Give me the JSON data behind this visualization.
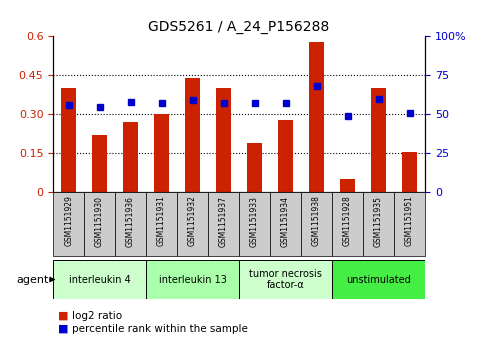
{
  "title": "GDS5261 / A_24_P156288",
  "samples": [
    "GSM1151929",
    "GSM1151930",
    "GSM1151936",
    "GSM1151931",
    "GSM1151932",
    "GSM1151937",
    "GSM1151933",
    "GSM1151934",
    "GSM1151938",
    "GSM1151928",
    "GSM1151935",
    "GSM1151951"
  ],
  "log2_ratio": [
    0.4,
    0.22,
    0.27,
    0.3,
    0.44,
    0.4,
    0.19,
    0.28,
    0.58,
    0.05,
    0.4,
    0.155
  ],
  "percentile_rank": [
    56,
    55,
    58,
    57,
    59,
    57,
    57,
    57,
    68,
    49,
    60,
    51
  ],
  "bar_color": "#cc2200",
  "dot_color": "#0000cc",
  "ylim_left": [
    0,
    0.6
  ],
  "ylim_right": [
    0,
    100
  ],
  "yticks_left": [
    0,
    0.15,
    0.3,
    0.45,
    0.6
  ],
  "yticks_right": [
    0,
    25,
    50,
    75,
    100
  ],
  "ytick_labels_left": [
    "0",
    "0.15",
    "0.30",
    "0.45",
    "0.6"
  ],
  "ytick_labels_right": [
    "0",
    "25",
    "50",
    "75",
    "100%"
  ],
  "agents": [
    {
      "label": "interleukin 4",
      "cols": [
        0,
        1,
        2
      ],
      "color": "#ccffcc"
    },
    {
      "label": "interleukin 13",
      "cols": [
        3,
        4,
        5
      ],
      "color": "#aaffaa"
    },
    {
      "label": "tumor necrosis\nfactor-α",
      "cols": [
        6,
        7,
        8
      ],
      "color": "#ccffcc"
    },
    {
      "label": "unstimulated",
      "cols": [
        9,
        10,
        11
      ],
      "color": "#44ee44"
    }
  ],
  "legend_items": [
    {
      "color": "#cc2200",
      "label": "log2 ratio"
    },
    {
      "color": "#0000cc",
      "label": "percentile rank within the sample"
    }
  ],
  "bg_color_plot": "#ffffff",
  "bar_width": 0.5,
  "tick_color_left": "#cc2200",
  "tick_color_right": "#0000cc",
  "xticklabel_bg": "#cccccc"
}
